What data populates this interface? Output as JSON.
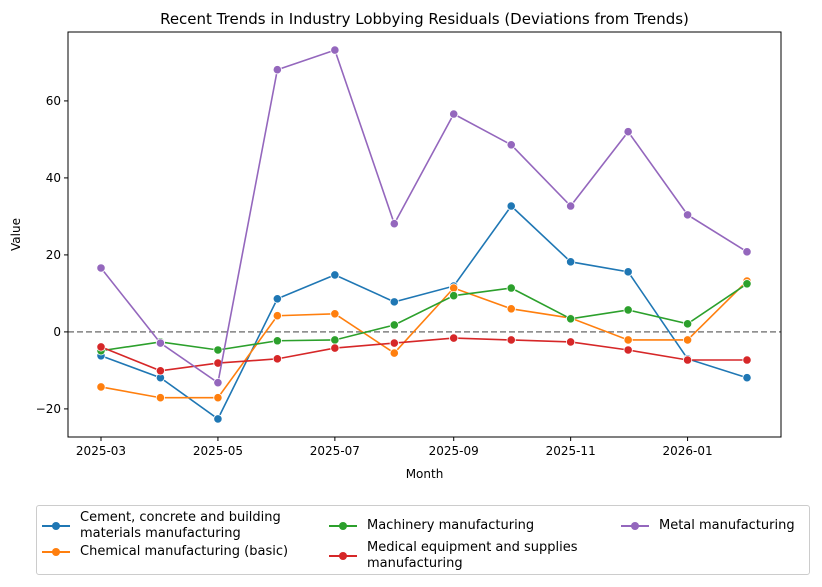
{
  "chart_data": {
    "type": "line",
    "title": "Recent Trends in Industry Lobbying Residuals (Deviations from Trends)",
    "xlabel": "Month",
    "ylabel": "Value",
    "x": [
      "2025-03",
      "2025-04",
      "2025-05",
      "2025-06",
      "2025-07",
      "2025-08",
      "2025-09",
      "2025-10",
      "2025-11",
      "2025-12",
      "2026-01",
      "2026-02"
    ],
    "xticks": [
      "2025-03",
      "2025-05",
      "2025-07",
      "2025-09",
      "2025-11",
      "2026-01"
    ],
    "yticks": [
      -20,
      0,
      20,
      40,
      60
    ],
    "ylim": [
      -27.3,
      77.9
    ],
    "grid": false,
    "reference_line": {
      "y": 0,
      "style": "dashed",
      "color": "#808080"
    },
    "legend_placement": "bottom",
    "series": [
      {
        "name": "Cement, concrete and building materials manufacturing",
        "color": "#1f77b4",
        "values": [
          -6.2,
          -11.9,
          -22.6,
          8.6,
          14.8,
          7.8,
          11.9,
          32.7,
          18.2,
          15.6,
          -7.0,
          -11.9
        ]
      },
      {
        "name": "Chemical manufacturing (basic)",
        "color": "#ff7f0e",
        "values": [
          -14.3,
          -17.1,
          -17.1,
          4.2,
          4.7,
          -5.5,
          11.4,
          6.0,
          3.6,
          -2.1,
          -2.1,
          13.2
        ]
      },
      {
        "name": "Machinery manufacturing",
        "color": "#2ca02c",
        "values": [
          -4.9,
          -2.6,
          -4.7,
          -2.3,
          -2.1,
          1.8,
          9.4,
          11.4,
          3.4,
          5.7,
          2.1,
          12.5
        ]
      },
      {
        "name": "Medical equipment and supplies manufacturing",
        "color": "#d62728",
        "values": [
          -3.9,
          -10.1,
          -8.1,
          -7.0,
          -4.2,
          -2.9,
          -1.6,
          -2.1,
          -2.6,
          -4.7,
          -7.3,
          -7.3
        ]
      },
      {
        "name": "Metal manufacturing",
        "color": "#9467bd",
        "values": [
          16.6,
          -2.9,
          -13.2,
          68.1,
          73.2,
          28.1,
          56.6,
          48.6,
          32.7,
          52.0,
          30.4,
          20.8
        ]
      }
    ]
  },
  "legend": {
    "labels": [
      "Cement, concrete and building\nmaterials manufacturing",
      "Chemical manufacturing (basic)",
      "Machinery manufacturing",
      "Medical equipment and supplies\nmanufacturing",
      "Metal manufacturing"
    ]
  }
}
